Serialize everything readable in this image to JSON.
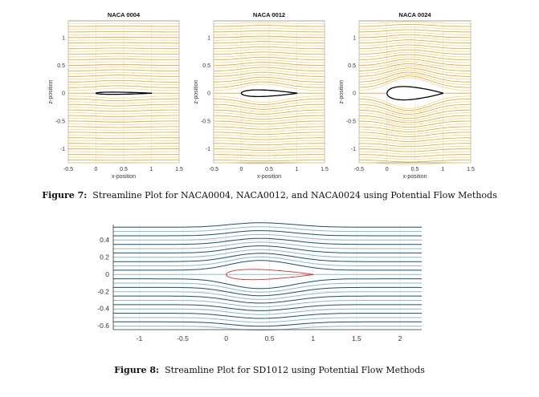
{
  "figure7": {
    "caption_label": "Figure 7:",
    "caption_text": "Streamline Plot for NACA0004, NACA0012, and NACA0024 using Potential Flow Methods"
  },
  "figure8": {
    "caption_label": "Figure 8:",
    "caption_text": "Streamline Plot for SD1012 using Potential Flow Methods"
  },
  "chart_data": [
    {
      "type": "line",
      "title": "NACA 0004",
      "xlabel": "x-position",
      "ylabel": "z-position",
      "xlim": [
        -0.5,
        1.5
      ],
      "ylim": [
        -1.25,
        1.3
      ],
      "xticks": [
        "-0.5",
        "0",
        "0.5",
        "1",
        "1.5"
      ],
      "yticks": [
        "-1",
        "-0.5",
        "0",
        "0.5",
        "1"
      ],
      "grid": true,
      "airfoil_thickness": 0.04,
      "streamline_color": "#e0a626",
      "airfoil_color": "#000000"
    },
    {
      "type": "line",
      "title": "NACA 0012",
      "xlabel": "x-position",
      "ylabel": "z-position",
      "xlim": [
        -0.5,
        1.5
      ],
      "ylim": [
        -1.25,
        1.3
      ],
      "xticks": [
        "-0.5",
        "0",
        "0.5",
        "1",
        "1.5"
      ],
      "yticks": [
        "-1",
        "-0.5",
        "0",
        "0.5",
        "1"
      ],
      "grid": true,
      "airfoil_thickness": 0.12,
      "streamline_color": "#e0a626",
      "airfoil_color": "#000000"
    },
    {
      "type": "line",
      "title": "NACA 0024",
      "xlabel": "x-position",
      "ylabel": "z-position",
      "xlim": [
        -0.5,
        1.5
      ],
      "ylim": [
        -1.25,
        1.3
      ],
      "xticks": [
        "-0.5",
        "0",
        "0.5",
        "1",
        "1.5"
      ],
      "yticks": [
        "-1",
        "-0.5",
        "0",
        "0.5",
        "1"
      ],
      "grid": true,
      "airfoil_thickness": 0.24,
      "streamline_color": "#e0a626",
      "airfoil_color": "#000000"
    },
    {
      "type": "line",
      "title": "",
      "xlabel": "",
      "ylabel": "",
      "xlim": [
        -1.3,
        2.25
      ],
      "ylim": [
        -0.64,
        0.58
      ],
      "xticks": [
        "-1",
        "-0.5",
        "0",
        "0.5",
        "1",
        "1.5",
        "2"
      ],
      "yticks": [
        "-0.6",
        "-0.4",
        "-0.2",
        "0",
        "0.2",
        "0.4"
      ],
      "grid": true,
      "airfoil": "SD1012",
      "airfoil_thickness": 0.12,
      "streamline_color": "#1d4f6e",
      "airfoil_color": "#d03030"
    }
  ]
}
